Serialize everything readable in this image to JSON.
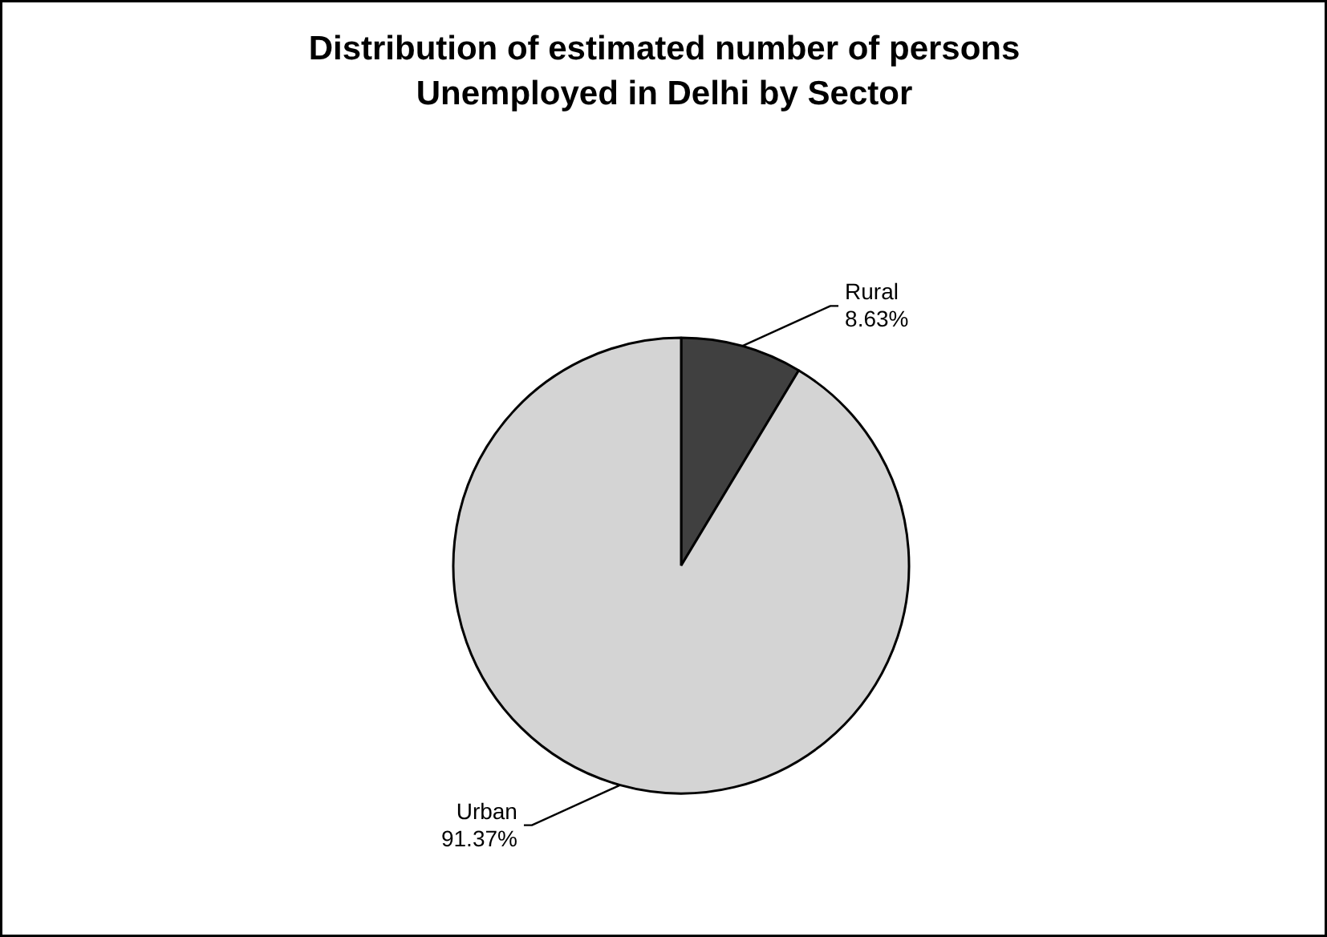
{
  "chart_data": {
    "type": "pie",
    "title": "Distribution of estimated number of persons\nUnemployed in Delhi by Sector",
    "categories": [
      "Rural",
      "Urban"
    ],
    "values": [
      8.63,
      91.37
    ],
    "colors": [
      "#404040",
      "#d4d4d4"
    ],
    "value_labels": [
      "8.63%",
      "91.37%"
    ]
  }
}
